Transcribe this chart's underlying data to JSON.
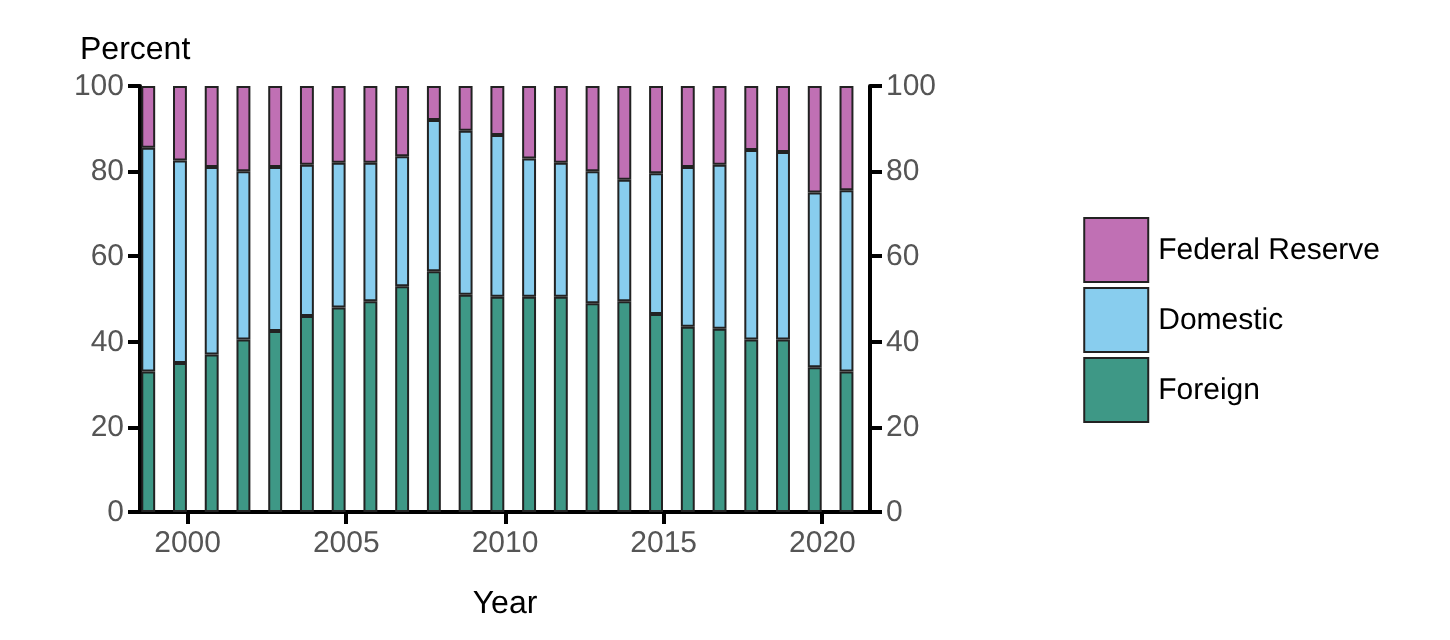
{
  "chart_data": {
    "type": "bar",
    "stacked": true,
    "xlabel": "Year",
    "ylabel": "Percent",
    "categories": [
      null,
      "2000",
      null,
      null,
      null,
      null,
      "2005",
      null,
      null,
      null,
      null,
      "2010",
      null,
      null,
      null,
      null,
      "2015",
      null,
      null,
      null,
      null,
      "2020",
      null
    ],
    "series": [
      {
        "name": "Foreign",
        "color": "#3e9886",
        "values": [
          33,
          35,
          37,
          40.5,
          42.5,
          46,
          48,
          49.5,
          53,
          56.5,
          51,
          50.5,
          50.5,
          50.5,
          49,
          49.5,
          46.5,
          43.5,
          43,
          40.5,
          40.5,
          34,
          33
        ]
      },
      {
        "name": "Domestic",
        "color": "#88cdee",
        "values": [
          52.5,
          47.5,
          44,
          39.5,
          38.5,
          35.5,
          34,
          32.5,
          30.5,
          35.5,
          38.5,
          38,
          32.5,
          31.5,
          31,
          28.5,
          33,
          37.5,
          38.5,
          44.5,
          44,
          41,
          42.5
        ]
      },
      {
        "name": "Federal Reserve",
        "color": "#c070b4",
        "values": [
          14.5,
          17.5,
          19,
          20,
          19,
          18.5,
          18,
          18,
          16.5,
          8,
          10.5,
          11.5,
          17,
          18,
          20,
          22,
          20.5,
          19,
          18.5,
          15,
          15.5,
          25,
          24.5
        ]
      }
    ],
    "ylim": [
      0,
      100
    ],
    "yticks": [
      0,
      20,
      40,
      60,
      80,
      100
    ],
    "y2lim": [
      0,
      100
    ],
    "y2ticks": [
      0,
      20,
      40,
      60,
      80,
      100
    ],
    "grid": false,
    "legend": "right"
  }
}
